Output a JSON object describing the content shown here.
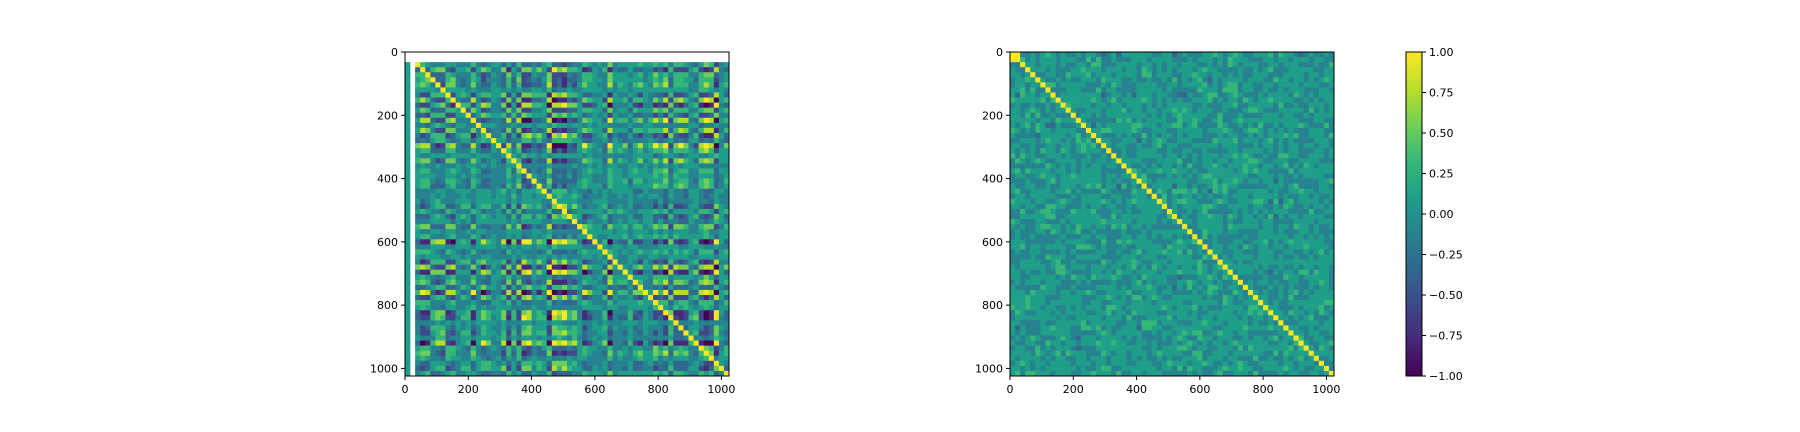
{
  "chart_data": [
    {
      "type": "heatmap",
      "title": "",
      "xlabel": "",
      "ylabel": "",
      "xlim": [
        0,
        1024
      ],
      "ylim": [
        1024,
        0
      ],
      "xticks": [
        0,
        200,
        400,
        600,
        800,
        1000
      ],
      "yticks": [
        0,
        200,
        400,
        600,
        800,
        1000
      ],
      "cmap": "viridis",
      "vmin": -1.0,
      "vmax": 1.0,
      "description_values": {
        "diagonal": 1.0,
        "blank_region": "rows 0-38 and cols 0-38 are empty (NaN) except a thin column at x≈5"
      }
    },
    {
      "type": "heatmap",
      "title": "",
      "xlabel": "",
      "ylabel": "",
      "xlim": [
        0,
        1024
      ],
      "ylim": [
        1024,
        0
      ],
      "xticks": [
        0,
        200,
        400,
        600,
        800,
        1000
      ],
      "yticks": [
        0,
        200,
        400,
        600,
        800,
        1000
      ],
      "cmap": "viridis",
      "vmin": -1.0,
      "vmax": 1.0,
      "description_values": {
        "diagonal": 1.0,
        "bright_block": "top-left block rows/cols 0-38 near 1.0"
      }
    }
  ],
  "colorbar": {
    "ticks": [
      "1.00",
      "0.75",
      "0.50",
      "0.25",
      "0.00",
      "−0.25",
      "−0.50",
      "−0.75",
      "−1.00"
    ],
    "tick_values": [
      1.0,
      0.75,
      0.5,
      0.25,
      0.0,
      -0.25,
      -0.5,
      -0.75,
      -1.0
    ],
    "vmin": -1.0,
    "vmax": 1.0
  },
  "colors": {
    "viridis": [
      "#440154",
      "#482878",
      "#3e4989",
      "#31688e",
      "#26828e",
      "#1f9e89",
      "#35b779",
      "#6ece58",
      "#b5de2b",
      "#fde725"
    ]
  }
}
